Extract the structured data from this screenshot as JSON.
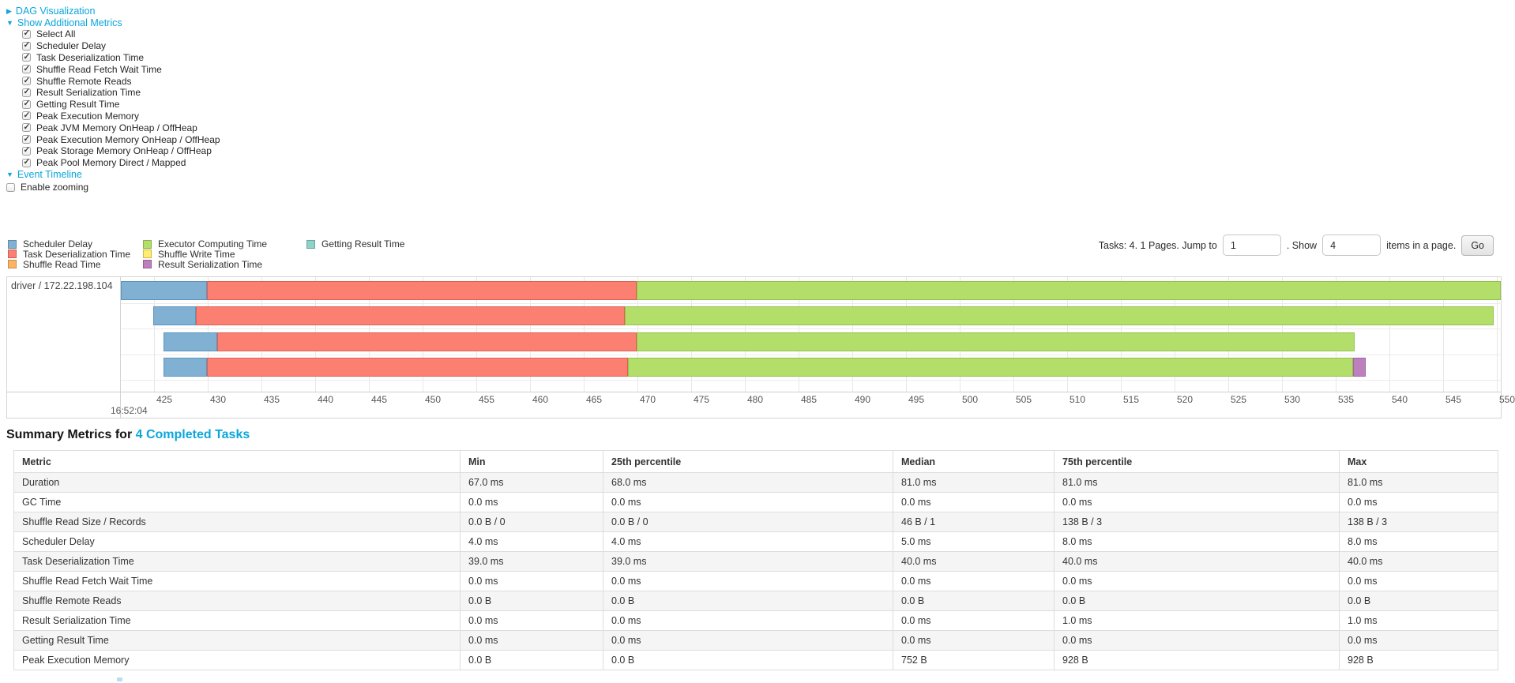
{
  "colors": {
    "link": "#0aa6dc",
    "scheduler_delay": "#80B1D3",
    "task_deserialization": "#FB8072",
    "shuffle_read": "#FDB462",
    "executor_computing": "#B3DE69",
    "shuffle_write": "#FFED6F",
    "result_serialization": "#BC80BD",
    "getting_result": "#8DD3C7"
  },
  "dag_section": {
    "label": "DAG Visualization",
    "expanded": false
  },
  "metrics_section": {
    "label": "Show Additional Metrics",
    "expanded": true,
    "items": [
      {
        "label": "Select All",
        "checked": true
      },
      {
        "label": "Scheduler Delay",
        "checked": true
      },
      {
        "label": "Task Deserialization Time",
        "checked": true
      },
      {
        "label": "Shuffle Read Fetch Wait Time",
        "checked": true
      },
      {
        "label": "Shuffle Remote Reads",
        "checked": true
      },
      {
        "label": "Result Serialization Time",
        "checked": true
      },
      {
        "label": "Getting Result Time",
        "checked": true
      },
      {
        "label": "Peak Execution Memory",
        "checked": true
      },
      {
        "label": "Peak JVM Memory OnHeap / OffHeap",
        "checked": true
      },
      {
        "label": "Peak Execution Memory OnHeap / OffHeap",
        "checked": true
      },
      {
        "label": "Peak Storage Memory OnHeap / OffHeap",
        "checked": true
      },
      {
        "label": "Peak Pool Memory Direct / Mapped",
        "checked": true
      }
    ]
  },
  "timeline_section": {
    "label": "Event Timeline",
    "expanded": true
  },
  "enable_zooming": {
    "label": "Enable zooming",
    "checked": false
  },
  "legend": {
    "columns": [
      [
        {
          "label": "Scheduler Delay",
          "color_key": "scheduler_delay"
        },
        {
          "label": "Task Deserialization Time",
          "color_key": "task_deserialization"
        },
        {
          "label": "Shuffle Read Time",
          "color_key": "shuffle_read"
        }
      ],
      [
        {
          "label": "Executor Computing Time",
          "color_key": "executor_computing"
        },
        {
          "label": "Shuffle Write Time",
          "color_key": "shuffle_write"
        },
        {
          "label": "Result Serialization Time",
          "color_key": "result_serialization"
        }
      ],
      [
        {
          "label": "Getting Result Time",
          "color_key": "getting_result"
        }
      ]
    ]
  },
  "pagination": {
    "prefix": "Tasks: 4. 1 Pages. Jump to",
    "jump_value": "1",
    "show_label": ". Show",
    "show_value": "4",
    "suffix": "items in a page.",
    "go_label": "Go"
  },
  "chart_data": {
    "type": "timeline",
    "group_label": "driver / 172.22.198.104",
    "axis": {
      "min": 425,
      "max": 550,
      "step": 5,
      "time_of_first_tick": "16:52:04"
    },
    "legend_position": "top-left",
    "grid": true,
    "tasks": [
      {
        "segments": [
          {
            "type": "scheduler_delay",
            "start": 421.9,
            "end": 429.9
          },
          {
            "type": "task_deserialization",
            "start": 429.9,
            "end": 469.9
          },
          {
            "type": "executor_computing",
            "start": 469.9,
            "end": 550.4
          }
        ]
      },
      {
        "segments": [
          {
            "type": "scheduler_delay",
            "start": 424.9,
            "end": 428.9
          },
          {
            "type": "task_deserialization",
            "start": 428.9,
            "end": 468.8
          },
          {
            "type": "executor_computing",
            "start": 468.8,
            "end": 549.7
          }
        ]
      },
      {
        "segments": [
          {
            "type": "scheduler_delay",
            "start": 425.9,
            "end": 430.9
          },
          {
            "type": "task_deserialization",
            "start": 430.9,
            "end": 469.9
          },
          {
            "type": "executor_computing",
            "start": 469.9,
            "end": 536.8
          }
        ]
      },
      {
        "segments": [
          {
            "type": "scheduler_delay",
            "start": 425.9,
            "end": 429.9
          },
          {
            "type": "task_deserialization",
            "start": 429.9,
            "end": 469.1
          },
          {
            "type": "executor_computing",
            "start": 469.1,
            "end": 536.6
          },
          {
            "type": "result_serialization",
            "start": 536.6,
            "end": 537.8
          }
        ]
      }
    ]
  },
  "summary": {
    "title_prefix": "Summary Metrics for ",
    "title_link": "4 Completed Tasks"
  },
  "table": {
    "headers": [
      "Metric",
      "Min",
      "25th percentile",
      "Median",
      "75th percentile",
      "Max"
    ],
    "rows": [
      {
        "metric": "Duration",
        "values": [
          "67.0 ms",
          "68.0 ms",
          "81.0 ms",
          "81.0 ms",
          "81.0 ms"
        ]
      },
      {
        "metric": "GC Time",
        "values": [
          "0.0 ms",
          "0.0 ms",
          "0.0 ms",
          "0.0 ms",
          "0.0 ms"
        ]
      },
      {
        "metric": "Shuffle Read Size / Records",
        "values": [
          "0.0 B / 0",
          "0.0 B / 0",
          "46 B / 1",
          "138 B / 3",
          "138 B / 3"
        ]
      },
      {
        "metric": "Scheduler Delay",
        "values": [
          "4.0 ms",
          "4.0 ms",
          "5.0 ms",
          "8.0 ms",
          "8.0 ms"
        ]
      },
      {
        "metric": "Task Deserialization Time",
        "values": [
          "39.0 ms",
          "39.0 ms",
          "40.0 ms",
          "40.0 ms",
          "40.0 ms"
        ]
      },
      {
        "metric": "Shuffle Read Fetch Wait Time",
        "values": [
          "0.0 ms",
          "0.0 ms",
          "0.0 ms",
          "0.0 ms",
          "0.0 ms"
        ]
      },
      {
        "metric": "Shuffle Remote Reads",
        "values": [
          "0.0 B",
          "0.0 B",
          "0.0 B",
          "0.0 B",
          "0.0 B"
        ]
      },
      {
        "metric": "Result Serialization Time",
        "values": [
          "0.0 ms",
          "0.0 ms",
          "0.0 ms",
          "1.0 ms",
          "1.0 ms"
        ]
      },
      {
        "metric": "Getting Result Time",
        "values": [
          "0.0 ms",
          "0.0 ms",
          "0.0 ms",
          "0.0 ms",
          "0.0 ms"
        ]
      },
      {
        "metric": "Peak Execution Memory",
        "values": [
          "0.0 B",
          "0.0 B",
          "752 B",
          "928 B",
          "928 B"
        ]
      }
    ]
  }
}
